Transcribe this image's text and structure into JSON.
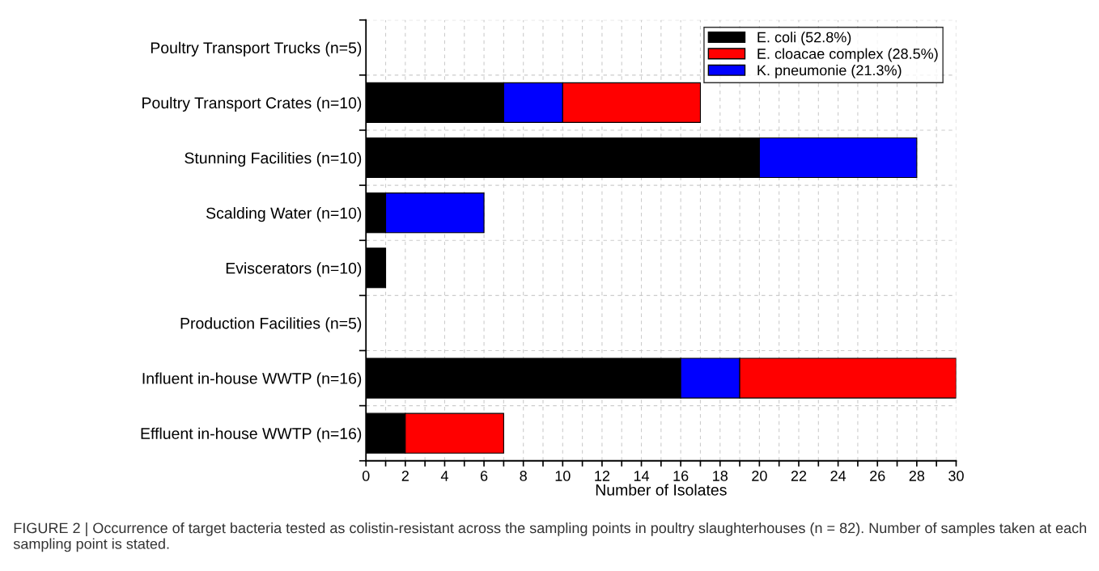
{
  "chart_data": {
    "type": "bar",
    "orientation": "horizontal",
    "stacked": true,
    "categories": [
      "Poultry Transport Trucks (n=5)",
      "Poultry Transport Crates (n=10)",
      "Stunning Facilities (n=10)",
      "Scalding Water (n=10)",
      "Eviscerators (n=10)",
      "Production Facilities (n=5)",
      "Influent in-house WWTP (n=16)",
      "Effluent in-house WWTP (n=16)"
    ],
    "series": [
      {
        "name": "E. coli (52.8%)",
        "color": "#000000",
        "values": [
          0,
          7,
          20,
          1,
          1,
          0,
          16,
          2
        ]
      },
      {
        "name": "K. pneumonie (21.3%)",
        "color": "#0000ff",
        "values": [
          0,
          3,
          8,
          5,
          0,
          0,
          3,
          0
        ]
      },
      {
        "name": "E. cloacae complex (28.5%)",
        "color": "#ff0000",
        "values": [
          0,
          7,
          0,
          0,
          0,
          0,
          11,
          5
        ]
      }
    ],
    "xlabel": "Number of Isolates",
    "xlim": [
      0,
      30
    ],
    "xticks": [
      0,
      {
        "value": 1,
        "label": null
      },
      2,
      {
        "value": 3,
        "label": null
      },
      4,
      {
        "value": 5,
        "label": null
      },
      6,
      {
        "value": 7,
        "label": null
      },
      8,
      {
        "value": 9,
        "label": null
      },
      10,
      {
        "value": 11,
        "label": null
      },
      12,
      {
        "value": 13,
        "label": null
      },
      14,
      {
        "value": 15,
        "label": null
      },
      16,
      {
        "value": 17,
        "label": null
      },
      18,
      {
        "value": 19,
        "label": null
      },
      20,
      {
        "value": 21,
        "label": null
      },
      22,
      {
        "value": 23,
        "label": null
      },
      24,
      {
        "value": 25,
        "label": null
      },
      26,
      {
        "value": 27,
        "label": null
      },
      28,
      {
        "value": 29,
        "label": null
      },
      30
    ],
    "grid": true,
    "legend": "top right",
    "annotations": [
      "FIGURE 2 | Occurrence of target bacteria tested as colistin-resistant across the sampling points in poultry slaughterhouses (n = 82). Number of samples taken at each sampling point is stated."
    ]
  }
}
